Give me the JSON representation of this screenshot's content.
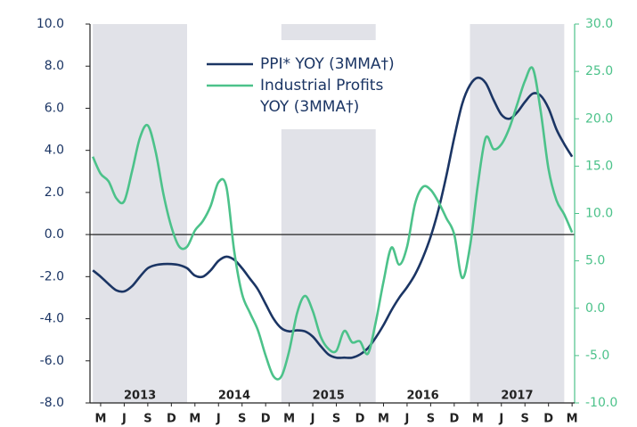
{
  "chart_data": {
    "type": "line",
    "x": [
      2013.0,
      2013.083,
      2013.167,
      2013.25,
      2013.333,
      2013.417,
      2013.5,
      2013.583,
      2013.667,
      2013.75,
      2013.833,
      2013.917,
      2014.0,
      2014.083,
      2014.167,
      2014.25,
      2014.333,
      2014.417,
      2014.5,
      2014.583,
      2014.667,
      2014.75,
      2014.833,
      2014.917,
      2015.0,
      2015.083,
      2015.167,
      2015.25,
      2015.333,
      2015.417,
      2015.5,
      2015.583,
      2015.667,
      2015.75,
      2015.833,
      2015.917,
      2016.0,
      2016.083,
      2016.167,
      2016.25,
      2016.333,
      2016.417,
      2016.5,
      2016.583,
      2016.667,
      2016.75,
      2016.833,
      2016.917,
      2017.0,
      2017.083,
      2017.167,
      2017.25,
      2017.333,
      2017.417,
      2017.5,
      2017.583,
      2017.667,
      2017.75,
      2017.833,
      2017.917,
      2018.0,
      2018.083
    ],
    "series": [
      {
        "name": "PPI* YOY (3MMA†)",
        "color": "#1b3564",
        "axis": "y",
        "values": [
          -1.7,
          -2.0,
          -2.35,
          -2.65,
          -2.7,
          -2.45,
          -2.0,
          -1.6,
          -1.45,
          -1.4,
          -1.4,
          -1.45,
          -1.6,
          -1.95,
          -2.0,
          -1.7,
          -1.25,
          -1.05,
          -1.2,
          -1.6,
          -2.1,
          -2.6,
          -3.3,
          -4.0,
          -4.45,
          -4.6,
          -4.55,
          -4.6,
          -4.85,
          -5.3,
          -5.7,
          -5.85,
          -5.85,
          -5.85,
          -5.7,
          -5.4,
          -4.9,
          -4.3,
          -3.6,
          -3.0,
          -2.5,
          -1.9,
          -1.1,
          -0.1,
          1.2,
          2.8,
          4.6,
          6.2,
          7.1,
          7.45,
          7.2,
          6.4,
          5.7,
          5.5,
          5.8,
          6.3,
          6.7,
          6.6,
          6.0,
          5.0,
          4.3,
          3.7
        ]
      },
      {
        "name": "Industrial Profits\nYOY (3MMA†)",
        "color": "#4cc28a",
        "axis": "y2",
        "values": [
          16.0,
          14.2,
          13.4,
          11.6,
          11.3,
          14.5,
          18.0,
          19.3,
          16.5,
          12.0,
          8.6,
          6.5,
          6.5,
          8.2,
          9.2,
          10.8,
          13.3,
          12.8,
          6.0,
          1.5,
          -0.5,
          -2.3,
          -5.0,
          -7.2,
          -7.2,
          -4.5,
          -0.5,
          1.3,
          -0.3,
          -3.0,
          -4.3,
          -4.5,
          -2.4,
          -3.6,
          -3.5,
          -4.8,
          -1.5,
          2.8,
          6.4,
          4.6,
          6.5,
          11.0,
          12.8,
          12.5,
          11.2,
          9.5,
          7.8,
          3.2,
          6.5,
          13.0,
          18.0,
          16.8,
          17.3,
          19.0,
          21.5,
          24.0,
          25.3,
          20.8,
          14.7,
          11.4,
          9.9,
          8.0
        ]
      }
    ],
    "xlim": [
      2012.97,
      2018.11
    ],
    "xticks": [
      {
        "value": 2013.083,
        "label": "M"
      },
      {
        "value": 2013.333,
        "label": "J"
      },
      {
        "value": 2013.583,
        "label": "S"
      },
      {
        "value": 2013.833,
        "label": "D"
      },
      {
        "value": 2014.083,
        "label": "M"
      },
      {
        "value": 2014.333,
        "label": "J"
      },
      {
        "value": 2014.583,
        "label": "S"
      },
      {
        "value": 2014.833,
        "label": "D"
      },
      {
        "value": 2015.083,
        "label": "M"
      },
      {
        "value": 2015.333,
        "label": "J"
      },
      {
        "value": 2015.583,
        "label": "S"
      },
      {
        "value": 2015.833,
        "label": "D"
      },
      {
        "value": 2016.083,
        "label": "M"
      },
      {
        "value": 2016.333,
        "label": "J"
      },
      {
        "value": 2016.583,
        "label": "S"
      },
      {
        "value": 2016.833,
        "label": "D"
      },
      {
        "value": 2017.083,
        "label": "M"
      },
      {
        "value": 2017.333,
        "label": "J"
      },
      {
        "value": 2017.583,
        "label": "S"
      },
      {
        "value": 2017.833,
        "label": "D"
      },
      {
        "value": 2018.083,
        "label": "M"
      }
    ],
    "year_labels": [
      "2013",
      "2014",
      "2015",
      "2016",
      "2017"
    ],
    "shaded": [
      [
        2013,
        2014
      ],
      [
        2015,
        2016
      ],
      [
        2017,
        2018
      ]
    ],
    "ylim": [
      -8,
      10
    ],
    "yticks": [
      {
        "value": 10,
        "label": "10.0"
      },
      {
        "value": 8,
        "label": "8.0"
      },
      {
        "value": 6,
        "label": "6.0"
      },
      {
        "value": 4,
        "label": "4.0"
      },
      {
        "value": 2,
        "label": "2.0"
      },
      {
        "value": 0,
        "label": "0.0"
      },
      {
        "value": -2,
        "label": "-2.0"
      },
      {
        "value": -4,
        "label": "-4.0"
      },
      {
        "value": -6,
        "label": "-6.0"
      },
      {
        "value": -8,
        "label": "-8.0"
      }
    ],
    "y2lim": [
      -10,
      30
    ],
    "y2ticks": [
      {
        "value": 30,
        "label": "30.0"
      },
      {
        "value": 25,
        "label": "25.0"
      },
      {
        "value": 20,
        "label": "20.0"
      },
      {
        "value": 15,
        "label": "15.0"
      },
      {
        "value": 10,
        "label": "10.0"
      },
      {
        "value": 5,
        "label": "5.0"
      },
      {
        "value": 0,
        "label": "0.0"
      },
      {
        "value": -5,
        "label": "-5.0"
      },
      {
        "value": -10,
        "label": "-10.0"
      }
    ],
    "zero_line": true,
    "legend": "top"
  }
}
